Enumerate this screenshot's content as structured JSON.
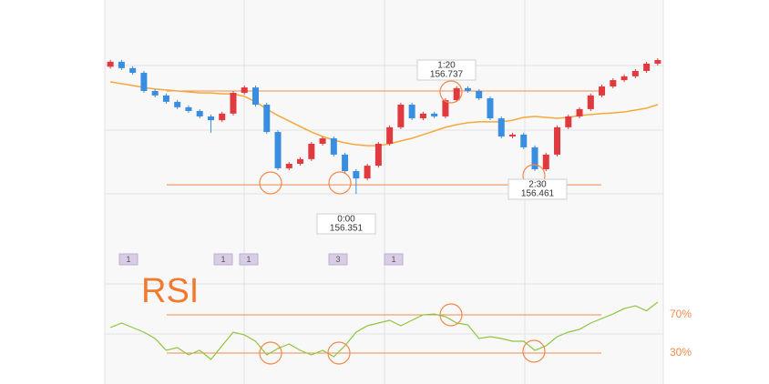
{
  "chart_data": [
    {
      "type": "candlestick",
      "open": [
        156.84,
        156.861,
        156.834,
        156.814,
        156.737,
        156.718,
        156.691,
        156.668,
        156.652,
        156.629,
        156.613,
        156.641,
        156.729,
        156.752,
        156.679,
        156.563,
        156.409,
        156.428,
        156.448,
        156.513,
        156.536,
        156.467,
        156.397,
        156.366,
        156.42,
        156.513,
        156.583,
        156.679,
        156.621,
        156.641,
        156.629,
        156.698,
        156.749,
        156.737,
        156.706,
        156.621,
        156.544,
        156.552,
        156.498,
        156.405,
        156.467,
        156.583,
        156.629,
        156.66,
        156.718,
        156.756,
        156.783,
        156.799,
        156.822,
        156.853
      ],
      "high": [
        156.869,
        156.869,
        156.842,
        156.822,
        156.745,
        156.726,
        156.699,
        156.676,
        156.66,
        156.637,
        156.649,
        156.737,
        156.76,
        156.76,
        156.687,
        156.571,
        156.436,
        156.456,
        156.521,
        156.544,
        156.544,
        156.475,
        156.405,
        156.428,
        156.521,
        156.591,
        156.687,
        156.687,
        156.649,
        156.649,
        156.706,
        156.757,
        156.757,
        156.745,
        156.714,
        156.629,
        156.56,
        156.56,
        156.506,
        156.475,
        156.591,
        156.637,
        156.668,
        156.726,
        156.764,
        156.791,
        156.807,
        156.83,
        156.861,
        156.876
      ],
      "low": [
        156.832,
        156.826,
        156.806,
        156.729,
        156.71,
        156.683,
        156.66,
        156.644,
        156.621,
        156.56,
        156.605,
        156.633,
        156.721,
        156.671,
        156.555,
        156.401,
        156.401,
        156.42,
        156.44,
        156.505,
        156.459,
        156.389,
        156.3,
        156.358,
        156.412,
        156.505,
        156.575,
        156.613,
        156.613,
        156.621,
        156.621,
        156.69,
        156.729,
        156.698,
        156.613,
        156.536,
        156.536,
        156.49,
        156.397,
        156.397,
        156.459,
        156.575,
        156.621,
        156.652,
        156.71,
        156.748,
        156.775,
        156.791,
        156.814,
        156.845
      ],
      "close": [
        156.861,
        156.834,
        156.814,
        156.737,
        156.718,
        156.691,
        156.668,
        156.652,
        156.629,
        156.613,
        156.641,
        156.729,
        156.752,
        156.679,
        156.563,
        156.409,
        156.428,
        156.448,
        156.513,
        156.536,
        156.467,
        156.397,
        156.366,
        156.42,
        156.513,
        156.583,
        156.679,
        156.621,
        156.641,
        156.629,
        156.698,
        156.749,
        156.737,
        156.706,
        156.621,
        156.544,
        156.552,
        156.498,
        156.405,
        156.467,
        156.583,
        156.629,
        156.66,
        156.718,
        156.756,
        156.783,
        156.799,
        156.822,
        156.853,
        156.868
      ],
      "up_color": "#e0393e",
      "down_color": "#3a8ee0",
      "moving_average": {
        "color": "#f5a93a",
        "values": [
          156.776,
          156.768,
          156.76,
          156.752,
          156.745,
          156.741,
          156.737,
          156.733,
          156.729,
          156.729,
          156.725,
          156.725,
          156.714,
          156.691,
          156.66,
          156.633,
          156.61,
          156.586,
          156.563,
          156.544,
          156.529,
          156.517,
          156.509,
          156.505,
          156.505,
          156.513,
          156.525,
          156.536,
          156.552,
          156.567,
          156.583,
          156.594,
          156.602,
          156.606,
          156.606,
          156.606,
          156.613,
          156.625,
          156.629,
          156.625,
          156.621,
          156.625,
          156.633,
          156.637,
          156.641,
          156.644,
          156.648,
          156.656,
          156.664,
          156.679
        ]
      },
      "ylim": [
        156.042,
        157.123
      ],
      "levels": [
        156.737,
        156.339
      ],
      "level_color": "#f08a4b",
      "callouts": [
        {
          "time": "1:20",
          "price": 156.737
        },
        {
          "time": "0:00",
          "price": 156.351
        },
        {
          "time": "2:30",
          "price": 156.461
        }
      ],
      "events": [
        1,
        1,
        1,
        3,
        1
      ]
    },
    {
      "type": "line",
      "title": "RSI",
      "color": "#8dc63f",
      "values": [
        56.7,
        61.4,
        56.7,
        51.9,
        45.2,
        32.9,
        35.7,
        28.1,
        32.9,
        23.3,
        37.6,
        51.9,
        49.0,
        42.4,
        28.1,
        34.8,
        39.5,
        32.9,
        28.1,
        32.9,
        26.2,
        37.6,
        51.9,
        58.6,
        61.4,
        64.3,
        58.6,
        64.3,
        70.0,
        70.9,
        68.1,
        61.4,
        59.5,
        45.2,
        47.1,
        45.2,
        42.4,
        42.4,
        32.9,
        37.6,
        47.1,
        51.9,
        54.8,
        61.4,
        66.2,
        70.9,
        76.6,
        79.4,
        74.3,
        83.3
      ],
      "ylim": [
        0,
        100
      ],
      "levels": [
        {
          "value": 70,
          "label": "70%"
        },
        {
          "value": 30,
          "label": "30%"
        }
      ],
      "level_color": "#f08a4b"
    }
  ]
}
